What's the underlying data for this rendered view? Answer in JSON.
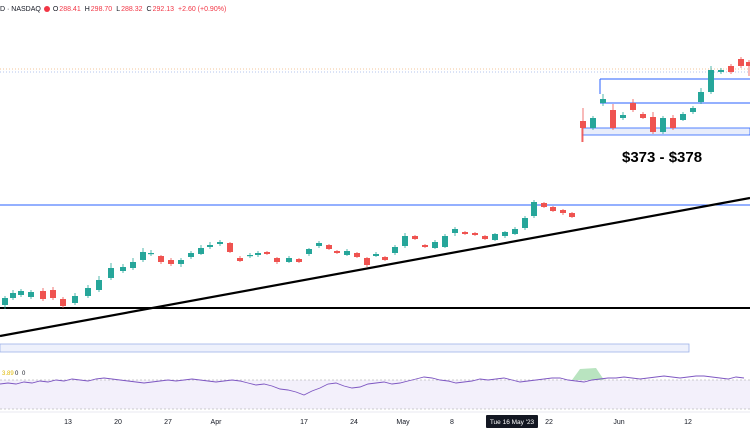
{
  "header": {
    "symbol_suffix": "D · NASDAQ",
    "o_label": "O",
    "o_value": "288.41",
    "h_label": "H",
    "h_value": "298.70",
    "l_label": "L",
    "l_value": "288.32",
    "c_label": "C",
    "c_value": "292.13",
    "change": "+2.60 (+0.90%)"
  },
  "annotation": "$373 - $378",
  "indicator": {
    "label_a": "3.89",
    "label_b": "0",
    "label_c": "0"
  },
  "chart_data": {
    "type": "candlestick",
    "x_ticks": [
      {
        "label": "13"
      },
      {
        "label": "20"
      },
      {
        "label": "27"
      },
      {
        "label": "Apr"
      },
      {
        "label": "17"
      },
      {
        "label": "24"
      },
      {
        "label": "May"
      },
      {
        "label": "8"
      },
      {
        "label": "Tue 16 May '23"
      },
      {
        "label": "22"
      },
      {
        "label": "Jun"
      },
      {
        "label": "12"
      }
    ],
    "colors": {
      "up": "#26a69a",
      "down": "#ef5350",
      "support_line": "#2962ff",
      "trendline": "#000000",
      "range_box": "#b2c3f0"
    },
    "price_label_range": "$373 - $378"
  }
}
